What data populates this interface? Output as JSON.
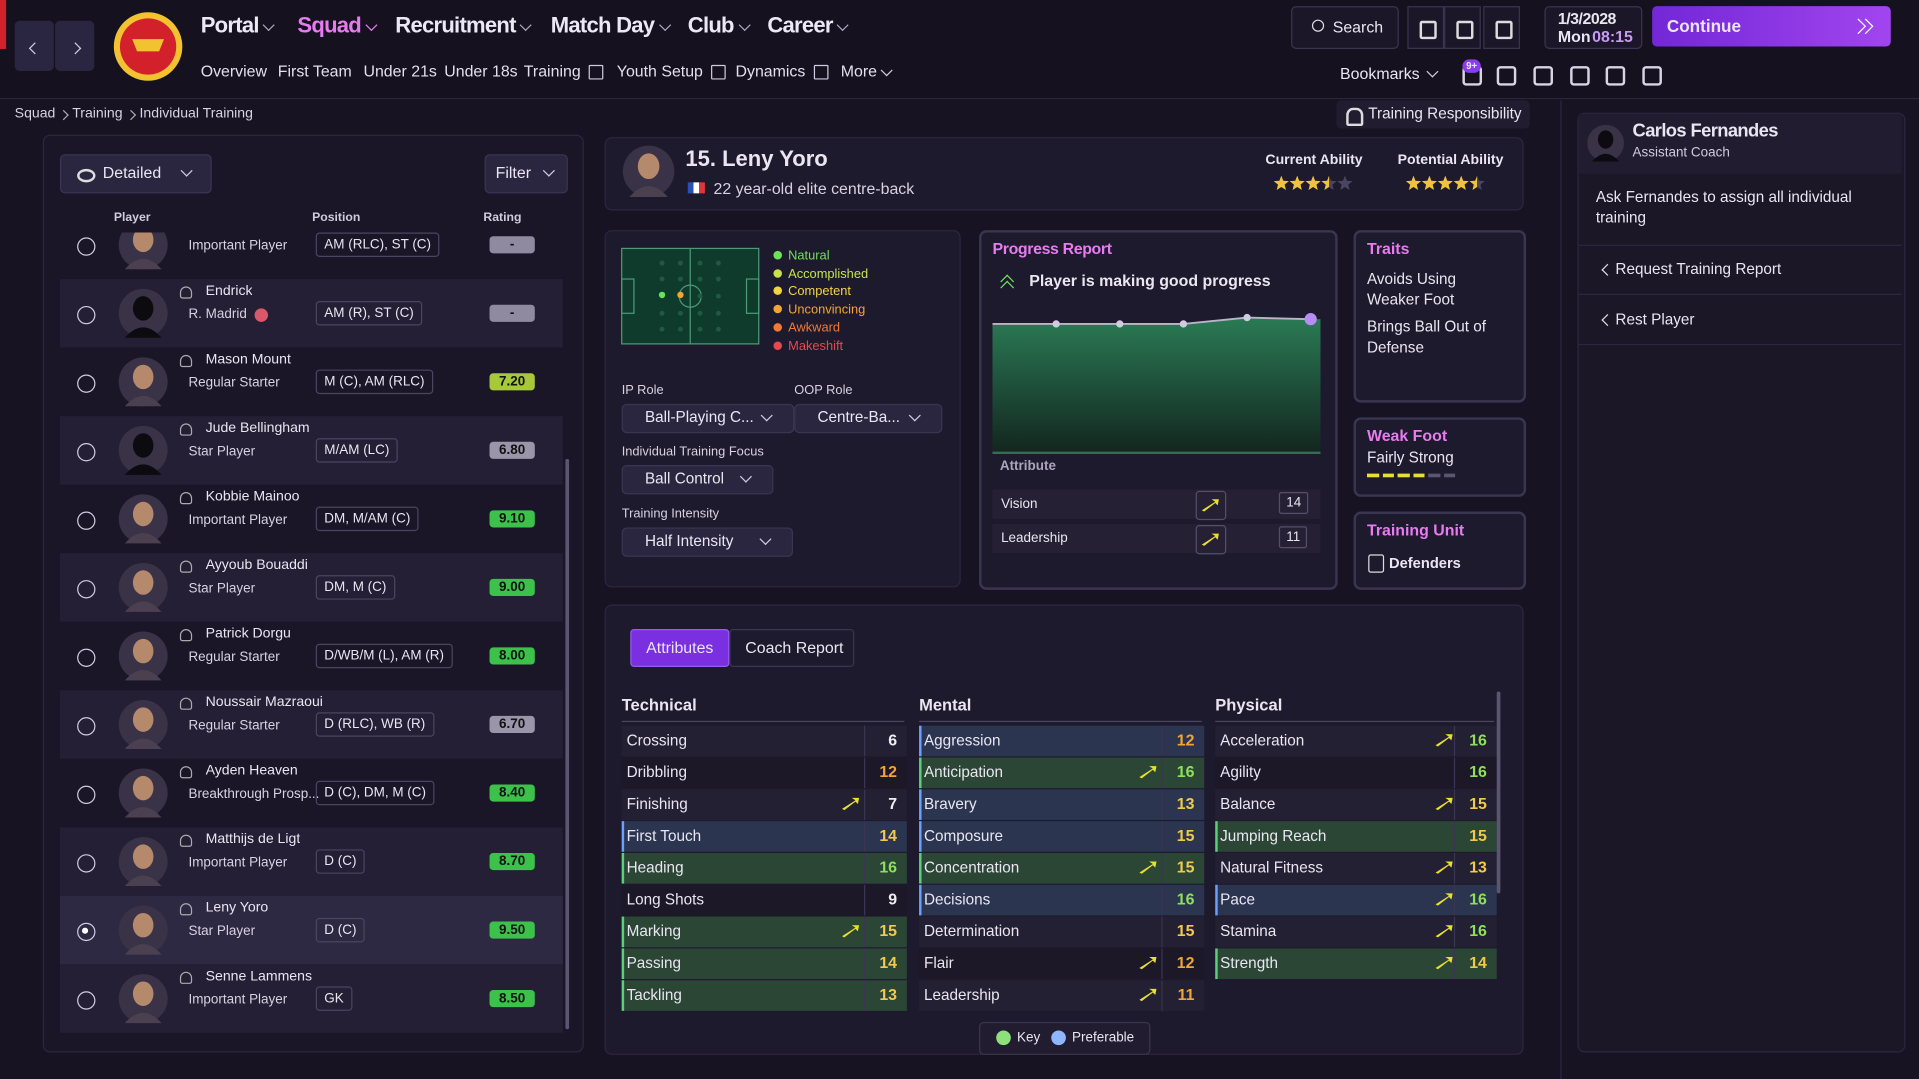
{
  "nav": {
    "main": [
      "Portal",
      "Squad",
      "Recruitment",
      "Match Day",
      "Club",
      "Career"
    ],
    "sub": [
      "Overview",
      "First Team",
      "Under 21s",
      "Under 18s",
      "Training",
      "Youth Setup",
      "Dynamics",
      "More"
    ],
    "search": "Search",
    "date": "1/3/2028",
    "weekday": "Mon",
    "time": "08:15",
    "continue": "Continue",
    "bookmarks": "Bookmarks",
    "badge": "9+"
  },
  "breadcrumb": [
    "Squad",
    "Training",
    "Individual Training"
  ],
  "training_responsibility": "Training Responsibility",
  "squad_list": {
    "view": "Detailed",
    "filter": "Filter",
    "columns": [
      "Player",
      "Position",
      "Rating"
    ],
    "rows": [
      {
        "status": "Important Player",
        "position": "AM (RLC), ST (C)",
        "rating": "-"
      },
      {
        "name": "Endrick",
        "status": "R. Madrid",
        "position": "AM (R), ST (C)",
        "rating": "-"
      },
      {
        "name": "Mason Mount",
        "status": "Regular Starter",
        "position": "M (C), AM (RLC)",
        "rating": "7.20"
      },
      {
        "name": "Jude Bellingham",
        "status": "Star Player",
        "position": "M/AM (LC)",
        "rating": "6.80"
      },
      {
        "name": "Kobbie Mainoo",
        "status": "Important Player",
        "position": "DM, M/AM (C)",
        "rating": "9.10"
      },
      {
        "name": "Ayyoub Bouaddi",
        "status": "Star Player",
        "position": "DM, M (C)",
        "rating": "9.00"
      },
      {
        "name": "Patrick Dorgu",
        "status": "Regular Starter",
        "position": "D/WB/M (L), AM (R)",
        "rating": "8.00"
      },
      {
        "name": "Noussair Mazraoui",
        "status": "Regular Starter",
        "position": "D (RLC), WB (R)",
        "rating": "6.70"
      },
      {
        "name": "Ayden Heaven",
        "status": "Breakthrough Prosp...",
        "position": "D (C), DM, M (C)",
        "rating": "8.40"
      },
      {
        "name": "Matthijs de Ligt",
        "status": "Important Player",
        "position": "D (C)",
        "rating": "8.70"
      },
      {
        "name": "Leny Yoro",
        "status": "Star Player",
        "position": "D (C)",
        "rating": "9.50",
        "selected": true
      },
      {
        "name": "Senne Lammens",
        "status": "Important Player",
        "position": "GK",
        "rating": "8.50"
      }
    ]
  },
  "player": {
    "title": "15. Leny Yoro",
    "description": "22 year-old elite centre-back",
    "current_ability": {
      "label": "Current Ability",
      "stars": 3.5
    },
    "potential_ability": {
      "label": "Potential Ability",
      "stars": 4.5
    }
  },
  "familiarity": [
    {
      "label": "Natural",
      "color": "#6fe05a"
    },
    {
      "label": "Accomplished",
      "color": "#c6e34a"
    },
    {
      "label": "Competent",
      "color": "#f2d443"
    },
    {
      "label": "Unconvincing",
      "color": "#f2a533"
    },
    {
      "label": "Awkward",
      "color": "#f07a35"
    },
    {
      "label": "Makeshift",
      "color": "#e5484d"
    }
  ],
  "roles": {
    "ip_label": "IP Role",
    "ip": "Ball-Playing C...",
    "oop_label": "OOP Role",
    "oop": "Centre-Ba...",
    "focus_label": "Individual Training Focus",
    "focus": "Ball Control",
    "intensity_label": "Training Intensity",
    "intensity": "Half Intensity"
  },
  "progress": {
    "title": "Progress Report",
    "status": "Player is making good progress",
    "chart": {
      "ylim": [
        0,
        100
      ],
      "values": [
        81,
        81,
        81,
        85,
        84
      ]
    },
    "attribute_header": "Attribute",
    "attributes": [
      {
        "name": "Vision",
        "value": 14
      },
      {
        "name": "Leadership",
        "value": 11
      }
    ]
  },
  "traits": {
    "title": "Traits",
    "items": [
      "Avoids Using Weaker Foot",
      "Brings Ball Out of Defense"
    ]
  },
  "weak_foot": {
    "title": "Weak Foot",
    "value": "Fairly Strong",
    "level": 4,
    "max": 6
  },
  "training_unit": {
    "title": "Training Unit",
    "value": "Defenders"
  },
  "tabs": [
    "Attributes",
    "Coach Report"
  ],
  "attributes": [
    {
      "title": "Technical",
      "rows": [
        {
          "name": "Crossing",
          "value": 6
        },
        {
          "name": "Dribbling",
          "value": 12
        },
        {
          "name": "Finishing",
          "value": 7,
          "trend": "up"
        },
        {
          "name": "First Touch",
          "value": 14,
          "highlight": "preferable"
        },
        {
          "name": "Heading",
          "value": 16,
          "highlight": "key"
        },
        {
          "name": "Long Shots",
          "value": 9
        },
        {
          "name": "Marking",
          "value": 15,
          "highlight": "key",
          "trend": "up"
        },
        {
          "name": "Passing",
          "value": 14,
          "highlight": "key"
        },
        {
          "name": "Tackling",
          "value": 13,
          "highlight": "key"
        }
      ]
    },
    {
      "title": "Mental",
      "rows": [
        {
          "name": "Aggression",
          "value": 12,
          "highlight": "preferable"
        },
        {
          "name": "Anticipation",
          "value": 16,
          "highlight": "key",
          "trend": "up"
        },
        {
          "name": "Bravery",
          "value": 13,
          "highlight": "preferable"
        },
        {
          "name": "Composure",
          "value": 15,
          "highlight": "preferable"
        },
        {
          "name": "Concentration",
          "value": 15,
          "highlight": "key",
          "trend": "up"
        },
        {
          "name": "Decisions",
          "value": 16,
          "highlight": "preferable"
        },
        {
          "name": "Determination",
          "value": 15
        },
        {
          "name": "Flair",
          "value": 12,
          "trend": "up"
        },
        {
          "name": "Leadership",
          "value": 11,
          "trend": "up"
        }
      ]
    },
    {
      "title": "Physical",
      "rows": [
        {
          "name": "Acceleration",
          "value": 16,
          "trend": "up"
        },
        {
          "name": "Agility",
          "value": 16
        },
        {
          "name": "Balance",
          "value": 15,
          "trend": "up"
        },
        {
          "name": "Jumping Reach",
          "value": 15,
          "highlight": "key"
        },
        {
          "name": "Natural Fitness",
          "value": 13,
          "trend": "up"
        },
        {
          "name": "Pace",
          "value": 16,
          "highlight": "preferable",
          "trend": "up"
        },
        {
          "name": "Stamina",
          "value": 16,
          "trend": "up"
        },
        {
          "name": "Strength",
          "value": 14,
          "highlight": "key",
          "trend": "up"
        }
      ]
    }
  ],
  "legend": [
    "Key",
    "Preferable"
  ],
  "coach": {
    "name": "Carlos Fernandes",
    "role": "Assistant Coach",
    "prompt": "Ask Fernandes to assign all individual training",
    "actions": [
      "Request Training Report",
      "Rest Player"
    ]
  }
}
